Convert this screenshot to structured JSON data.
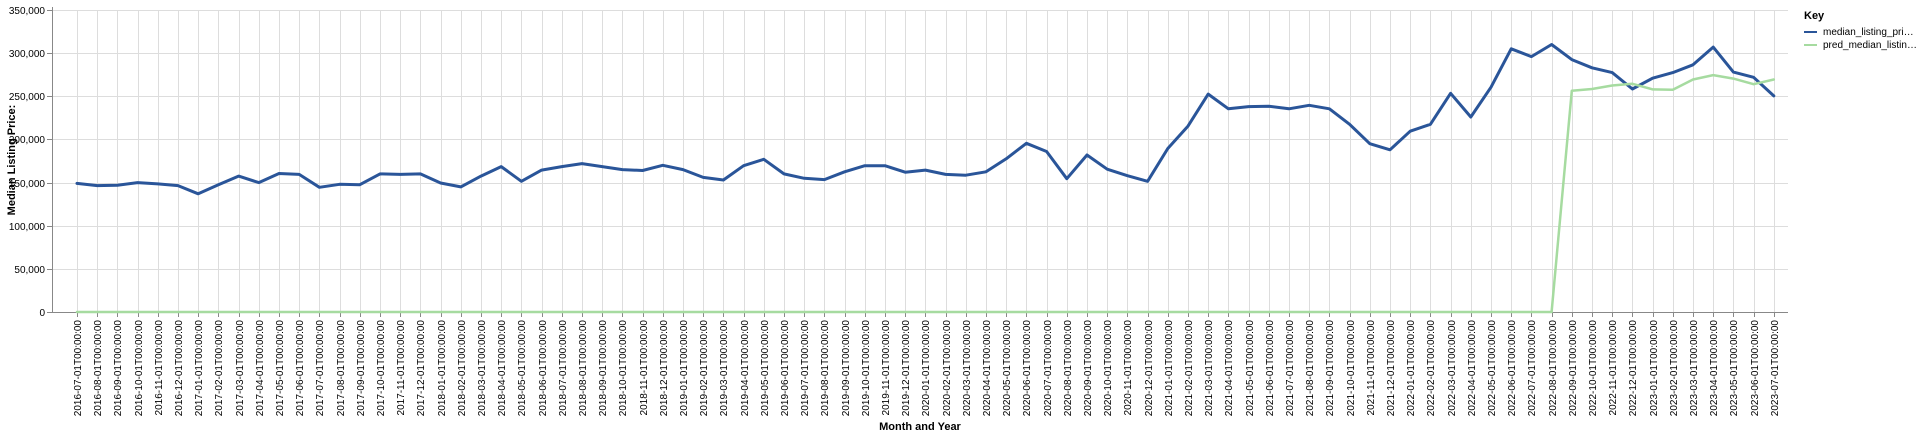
{
  "chart_data": {
    "type": "line",
    "xlabel": "Month and Year",
    "ylabel": "Median Listing Price:",
    "ylim": [
      0,
      350000
    ],
    "yticks": [
      "0",
      "50,000",
      "100,000",
      "150,000",
      "200,000",
      "250,000",
      "300,000",
      "350,000"
    ],
    "grid": true,
    "legend_title": "Key",
    "legend_position": "top-right",
    "x": [
      "2016-07-01T00:00:00",
      "2016-08-01T00:00:00",
      "2016-09-01T00:00:00",
      "2016-10-01T00:00:00",
      "2016-11-01T00:00:00",
      "2016-12-01T00:00:00",
      "2017-01-01T00:00:00",
      "2017-02-01T00:00:00",
      "2017-03-01T00:00:00",
      "2017-04-01T00:00:00",
      "2017-05-01T00:00:00",
      "2017-06-01T00:00:00",
      "2017-07-01T00:00:00",
      "2017-08-01T00:00:00",
      "2017-09-01T00:00:00",
      "2017-10-01T00:00:00",
      "2017-11-01T00:00:00",
      "2017-12-01T00:00:00",
      "2018-01-01T00:00:00",
      "2018-02-01T00:00:00",
      "2018-03-01T00:00:00",
      "2018-04-01T00:00:00",
      "2018-05-01T00:00:00",
      "2018-06-01T00:00:00",
      "2018-07-01T00:00:00",
      "2018-08-01T00:00:00",
      "2018-09-01T00:00:00",
      "2018-10-01T00:00:00",
      "2018-11-01T00:00:00",
      "2018-12-01T00:00:00",
      "2019-01-01T00:00:00",
      "2019-02-01T00:00:00",
      "2019-03-01T00:00:00",
      "2019-04-01T00:00:00",
      "2019-05-01T00:00:00",
      "2019-06-01T00:00:00",
      "2019-07-01T00:00:00",
      "2019-08-01T00:00:00",
      "2019-09-01T00:00:00",
      "2019-10-01T00:00:00",
      "2019-11-01T00:00:00",
      "2019-12-01T00:00:00",
      "2020-01-01T00:00:00",
      "2020-02-01T00:00:00",
      "2020-03-01T00:00:00",
      "2020-04-01T00:00:00",
      "2020-05-01T00:00:00",
      "2020-06-01T00:00:00",
      "2020-07-01T00:00:00",
      "2020-08-01T00:00:00",
      "2020-09-01T00:00:00",
      "2020-10-01T00:00:00",
      "2020-11-01T00:00:00",
      "2020-12-01T00:00:00",
      "2021-01-01T00:00:00",
      "2021-02-01T00:00:00",
      "2021-03-01T00:00:00",
      "2021-04-01T00:00:00",
      "2021-05-01T00:00:00",
      "2021-06-01T00:00:00",
      "2021-07-01T00:00:00",
      "2021-08-01T00:00:00",
      "2021-09-01T00:00:00",
      "2021-10-01T00:00:00",
      "2021-11-01T00:00:00",
      "2021-12-01T00:00:00",
      "2022-01-01T00:00:00",
      "2022-02-01T00:00:00",
      "2022-03-01T00:00:00",
      "2022-04-01T00:00:00",
      "2022-05-01T00:00:00",
      "2022-06-01T00:00:00",
      "2022-07-01T00:00:00",
      "2022-08-01T00:00:00",
      "2022-09-01T00:00:00",
      "2022-10-01T00:00:00",
      "2022-11-01T00:00:00",
      "2022-12-01T00:00:00",
      "2023-01-01T00:00:00",
      "2023-02-01T00:00:00",
      "2023-03-01T00:00:00",
      "2023-04-01T00:00:00",
      "2023-05-01T00:00:00",
      "2023-06-01T00:00:00",
      "2023-07-01T00:00:00"
    ],
    "series": [
      {
        "name": "median_listing_pri…",
        "color": "#2a5599",
        "values": [
          149000,
          146500,
          147000,
          150000,
          148500,
          146500,
          137000,
          147500,
          157500,
          150000,
          160500,
          159500,
          144500,
          148000,
          147500,
          160000,
          159500,
          160000,
          149500,
          145000,
          157500,
          168500,
          151500,
          164500,
          168500,
          172000,
          168500,
          165000,
          164000,
          170000,
          165000,
          156000,
          153000,
          169500,
          177000,
          160000,
          155000,
          153500,
          162500,
          169500,
          169500,
          162000,
          164500,
          159500,
          158500,
          162500,
          177500,
          195500,
          186000,
          154500,
          182000,
          165500,
          158000,
          151500,
          189500,
          215500,
          252500,
          235500,
          238000,
          238500,
          235500,
          239500,
          235500,
          217500,
          195000,
          188000,
          209500,
          217500,
          253500,
          226000,
          260500,
          305000,
          296000,
          310000,
          292500,
          283000,
          277500,
          258500,
          271000,
          277500,
          286500,
          307000,
          278000,
          272000,
          250500
        ]
      },
      {
        "name": "pred_median_listin…",
        "color": "#a6dba0",
        "values": [
          0,
          0,
          0,
          0,
          0,
          0,
          0,
          0,
          0,
          0,
          0,
          0,
          0,
          0,
          0,
          0,
          0,
          0,
          0,
          0,
          0,
          0,
          0,
          0,
          0,
          0,
          0,
          0,
          0,
          0,
          0,
          0,
          0,
          0,
          0,
          0,
          0,
          0,
          0,
          0,
          0,
          0,
          0,
          0,
          0,
          0,
          0,
          0,
          0,
          0,
          0,
          0,
          0,
          0,
          0,
          0,
          0,
          0,
          0,
          0,
          0,
          0,
          0,
          0,
          0,
          0,
          0,
          0,
          0,
          0,
          0,
          0,
          0,
          0,
          256500,
          258500,
          262500,
          264500,
          258000,
          257500,
          269500,
          274500,
          270500,
          264000,
          269500
        ]
      }
    ]
  }
}
